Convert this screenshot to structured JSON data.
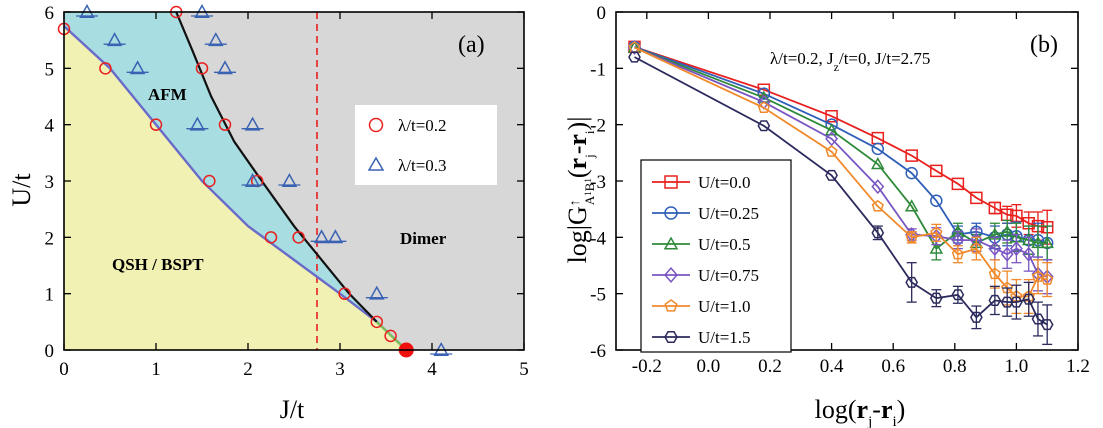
{
  "chart_data": [
    {
      "type": "scatter",
      "panel_label": "(a)",
      "xlabel": "J/t",
      "ylabel": "U/t",
      "xlim": [
        0,
        5
      ],
      "ylim": [
        0,
        6
      ],
      "xticks": [
        "0",
        "1",
        "2",
        "3",
        "4",
        "5"
      ],
      "yticks": [
        "0",
        "1",
        "2",
        "3",
        "4",
        "5",
        "6"
      ],
      "regions": {
        "afm": "AFM",
        "qsh": "QSH / BSPT",
        "dimer": "Dimer"
      },
      "region_colors": {
        "afm": "#a8dde2",
        "qsh": "#f1f1b4",
        "dimer": "#d7d7d7"
      },
      "qsh_boundary": [
        [
          0,
          5.75
        ],
        [
          0.5,
          5.0
        ],
        [
          1.0,
          4.0
        ],
        [
          1.5,
          3.0
        ],
        [
          2.0,
          2.2
        ],
        [
          2.5,
          1.6
        ],
        [
          3.0,
          1.0
        ],
        [
          3.4,
          0.5
        ],
        [
          3.72,
          0.0
        ]
      ],
      "afm_boundary": [
        [
          1.22,
          6.0
        ],
        [
          1.4,
          5.3
        ],
        [
          1.6,
          4.5
        ],
        [
          1.85,
          3.7
        ],
        [
          2.15,
          3.0
        ],
        [
          2.5,
          2.2
        ],
        [
          2.9,
          1.4
        ],
        [
          3.1,
          1.0
        ],
        [
          3.4,
          0.5
        ]
      ],
      "dashed_line_x": 2.75,
      "critical_point": [
        3.72,
        0.0
      ],
      "series": [
        {
          "name": "λ/t=0.2",
          "marker": "circle",
          "color": "#e8201e",
          "x": [
            0.0,
            0.45,
            1.0,
            1.22,
            1.5,
            1.75,
            1.58,
            2.1,
            2.25,
            2.55,
            3.05,
            3.4,
            3.55
          ],
          "y": [
            5.7,
            5.0,
            4.0,
            6.0,
            5.0,
            4.0,
            3.0,
            3.0,
            2.0,
            2.0,
            1.0,
            0.5,
            0.25
          ]
        },
        {
          "name": "λ/t=0.3",
          "marker": "triangle",
          "color": "#3a62b3",
          "x": [
            0.25,
            0.55,
            0.8,
            1.5,
            1.65,
            1.75,
            1.45,
            2.05,
            2.05,
            2.45,
            2.8,
            2.95,
            3.4,
            4.1
          ],
          "y": [
            6.0,
            5.5,
            5.0,
            6.0,
            5.5,
            5.0,
            4.0,
            4.0,
            3.0,
            3.0,
            2.0,
            2.0,
            1.0,
            0.0
          ]
        }
      ]
    },
    {
      "type": "line",
      "panel_label": "(b)",
      "annotation": "λ/t=0.2, J_z/t=0, J/t=2.75",
      "xlabel": "log(r_j-r_i)",
      "ylabel": "log|G^↑_{A1B1}(r_j-r_i)|",
      "xlim": [
        -0.3,
        1.2
      ],
      "ylim": [
        -6,
        0
      ],
      "xticks": [
        "-0.2",
        "0.0",
        "0.2",
        "0.4",
        "0.6",
        "0.8",
        "1.0",
        "1.2"
      ],
      "yticks": [
        "-6",
        "-5",
        "-4",
        "-3",
        "-2",
        "-1",
        "0"
      ],
      "x": [
        -0.24,
        0.18,
        0.4,
        0.55,
        0.66,
        0.74,
        0.81,
        0.87,
        0.93,
        0.97,
        1.0,
        1.04,
        1.07,
        1.1
      ],
      "series": [
        {
          "name": "U/t=0.0",
          "color": "#e8201e",
          "marker": "square",
          "y": [
            -0.62,
            -1.38,
            -1.85,
            -2.24,
            -2.55,
            -2.82,
            -3.05,
            -3.3,
            -3.48,
            -3.6,
            -3.62,
            -3.75,
            -3.8,
            -3.82
          ],
          "err": [
            0,
            0,
            0,
            0,
            0,
            0,
            0,
            0,
            0.1,
            0.15,
            0.2,
            0.2,
            0.25,
            0.3
          ]
        },
        {
          "name": "U/t=0.25",
          "color": "#2f5fb8",
          "marker": "circle",
          "y": [
            -0.62,
            -1.45,
            -2.0,
            -2.43,
            -2.86,
            -3.35,
            -3.95,
            -3.9,
            -4.0,
            -3.95,
            -3.98,
            -4.05,
            -4.05,
            -4.1
          ],
          "err": [
            0,
            0,
            0,
            0,
            0,
            0,
            0.15,
            0.15,
            0.2,
            0.2,
            0.25,
            0.25,
            0.3,
            0.3
          ]
        },
        {
          "name": "U/t=0.5",
          "color": "#2e8a3a",
          "marker": "triangle",
          "y": [
            -0.63,
            -1.52,
            -2.1,
            -2.7,
            -3.45,
            -4.2,
            -3.9,
            -4.1,
            -3.95,
            -3.9,
            -4.0,
            -4.05,
            -4.1,
            -4.1
          ],
          "err": [
            0,
            0,
            0,
            0,
            0,
            0.2,
            0.15,
            0.15,
            0.2,
            0.2,
            0.25,
            0.25,
            0.3,
            0.3
          ]
        },
        {
          "name": "U/t=0.75",
          "color": "#7a56c2",
          "marker": "diamond",
          "y": [
            -0.63,
            -1.6,
            -2.25,
            -3.1,
            -3.95,
            -3.98,
            -4.05,
            -4.05,
            -4.2,
            -4.3,
            -4.2,
            -4.3,
            -4.65,
            -4.7
          ],
          "err": [
            0,
            0,
            0,
            0,
            0.1,
            0.15,
            0.15,
            0.2,
            0.2,
            0.25,
            0.25,
            0.3,
            0.3,
            0.3
          ]
        },
        {
          "name": "U/t=1.0",
          "color": "#f08a2c",
          "marker": "pentagon",
          "y": [
            -0.63,
            -1.7,
            -2.48,
            -3.45,
            -4.0,
            -3.92,
            -4.3,
            -4.2,
            -4.65,
            -4.9,
            -5.05,
            -5.05,
            -4.7,
            -4.75
          ],
          "err": [
            0,
            0,
            0,
            0,
            0.1,
            0.15,
            0.15,
            0.2,
            0.25,
            0.3,
            0.3,
            0.3,
            0.3,
            0.3
          ]
        },
        {
          "name": "U/t=1.5",
          "color": "#2b2a5c",
          "marker": "hexagon",
          "y": [
            -0.8,
            -2.02,
            -2.9,
            -3.92,
            -4.8,
            -5.08,
            -5.02,
            -5.42,
            -5.12,
            -5.15,
            -5.15,
            -5.1,
            -5.45,
            -5.55
          ],
          "err": [
            0,
            0,
            0,
            0.12,
            0.35,
            0.15,
            0.15,
            0.2,
            0.25,
            0.25,
            0.3,
            0.3,
            0.3,
            0.35
          ]
        }
      ]
    }
  ]
}
